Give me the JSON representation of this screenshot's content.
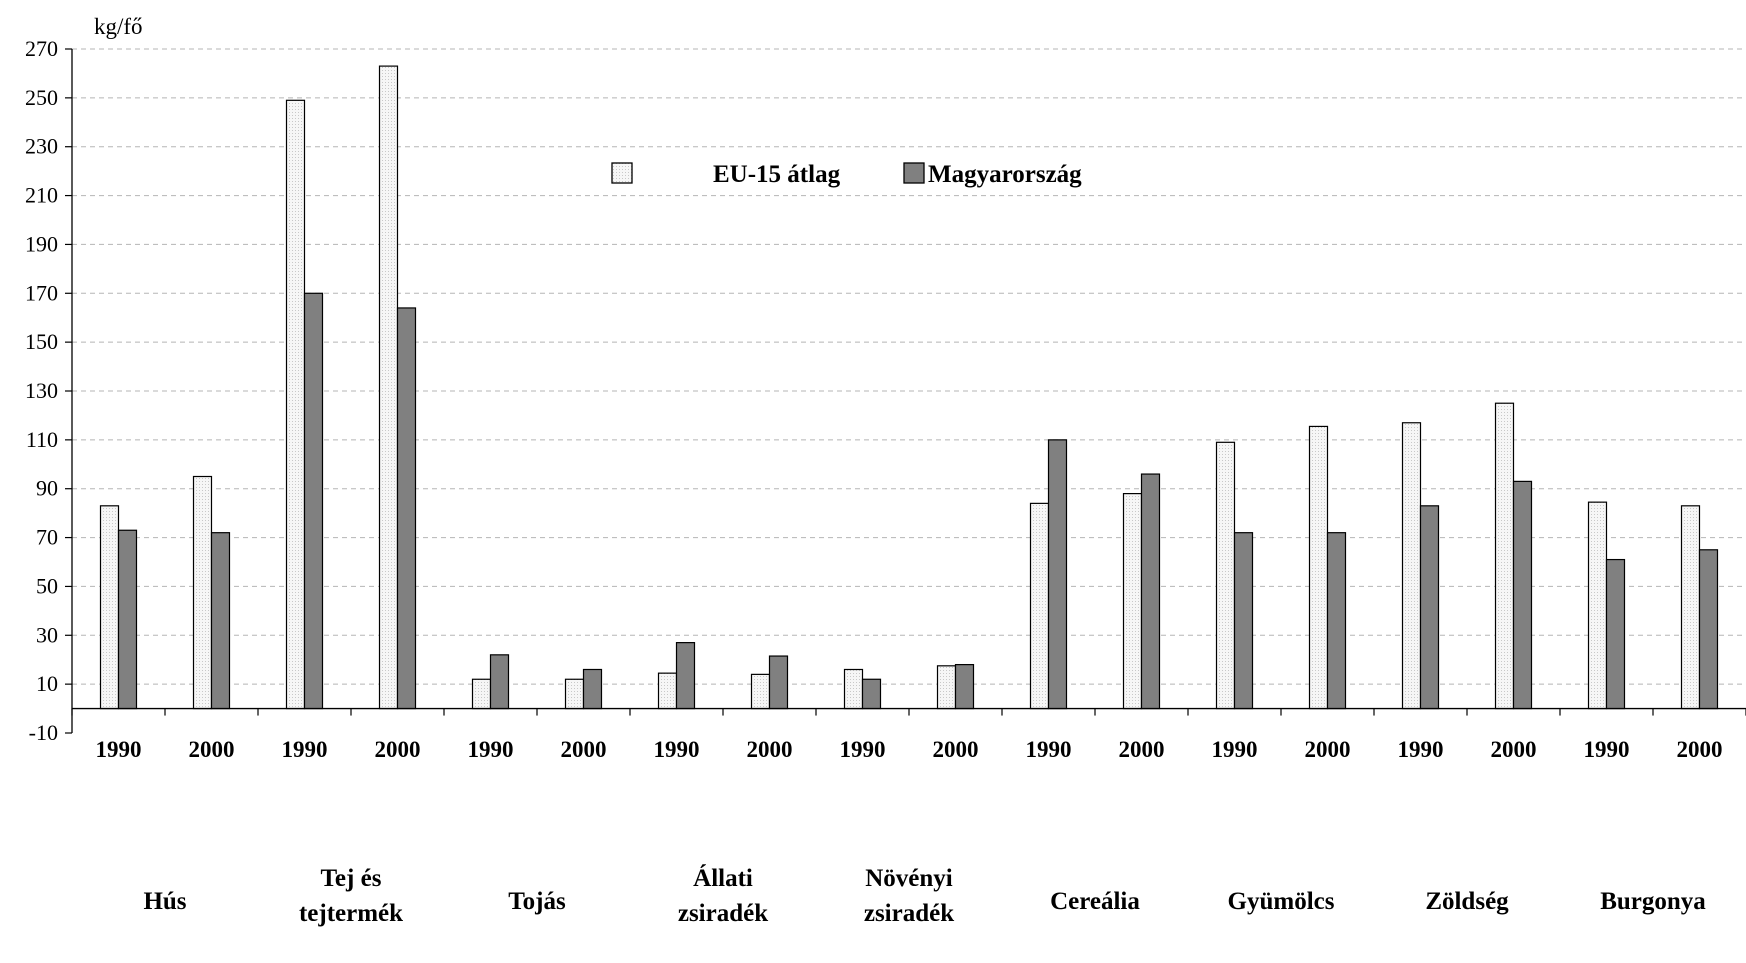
{
  "chart_data": {
    "type": "bar",
    "ylabel": "kg/fő",
    "ylim": [
      -10,
      270
    ],
    "yticks": [
      -10,
      10,
      30,
      50,
      70,
      90,
      110,
      130,
      150,
      170,
      190,
      210,
      230,
      250,
      270
    ],
    "grid": true,
    "legend_position": "top-center",
    "categories": [
      "1990",
      "2000",
      "1990",
      "2000",
      "1990",
      "2000",
      "1990",
      "2000",
      "1990",
      "2000",
      "1990",
      "2000",
      "1990",
      "2000",
      "1990",
      "2000",
      "1990",
      "2000"
    ],
    "groups": [
      [
        "Hús"
      ],
      [
        "Tej és",
        "tejtermék"
      ],
      [
        "Tojás"
      ],
      [
        "Állati",
        "zsiradék"
      ],
      [
        "Növényi",
        "zsiradék"
      ],
      [
        "Cereália"
      ],
      [
        "Gyümölcs"
      ],
      [
        "Zöldség"
      ],
      [
        "Burgonya"
      ]
    ],
    "series": [
      {
        "name": "EU-15 átlag",
        "color": "#f4f4f4",
        "values": [
          83,
          95,
          249,
          263,
          12,
          12,
          14.5,
          14,
          16,
          17.5,
          84,
          88,
          109,
          115.5,
          117,
          125,
          84.5,
          83
        ]
      },
      {
        "name": "Magyarország",
        "color": "#808080",
        "values": [
          73,
          72,
          170,
          164,
          22,
          16,
          27,
          21.5,
          12,
          18,
          110,
          96,
          72,
          72,
          83,
          93,
          61,
          65
        ]
      }
    ]
  }
}
